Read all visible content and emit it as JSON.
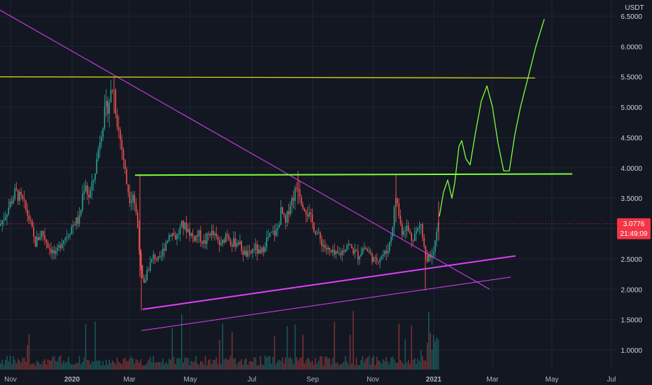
{
  "chart_data": {
    "type": "candlestick",
    "quote_currency": "USDT",
    "x_labels": [
      "Nov",
      "2020",
      "Mar",
      "May",
      "Jul",
      "Sep",
      "Nov",
      "2021",
      "Mar",
      "May",
      "Jul"
    ],
    "bold_x_labels": [
      "2020",
      "2021"
    ],
    "y_labels": [
      "6.5000",
      "6.0000",
      "5.5000",
      "5.0000",
      "4.5000",
      "4.0000",
      "3.5000",
      "3.0000",
      "2.5000",
      "2.0000",
      "1.5000",
      "1.0000"
    ],
    "ylim": [
      0.9,
      6.8
    ],
    "last_price": {
      "value": 3.0776,
      "label": "3.0776",
      "countdown": "21:49:09"
    },
    "grid": true,
    "colors": {
      "background": "#131722",
      "grid": "#1f2433",
      "up": "#26a69a",
      "down": "#ef5350",
      "magenta": "#e040fb",
      "green": "#4caf50",
      "yellow": "#e4e40f",
      "lime": "#7cff3a",
      "price_label": "#f23645"
    },
    "price_path": [
      [
        0,
        3.05
      ],
      [
        12,
        3.35
      ],
      [
        22,
        3.6
      ],
      [
        32,
        3.45
      ],
      [
        42,
        3.15
      ],
      [
        50,
        2.75
      ],
      [
        60,
        2.95
      ],
      [
        70,
        2.7
      ],
      [
        80,
        2.55
      ],
      [
        88,
        2.8
      ],
      [
        96,
        2.9
      ],
      [
        106,
        3.1
      ],
      [
        114,
        3.15
      ],
      [
        118,
        3.55
      ],
      [
        122,
        3.8
      ],
      [
        126,
        3.5
      ],
      [
        132,
        3.7
      ],
      [
        138,
        4.1
      ],
      [
        144,
        4.6
      ],
      [
        150,
        4.9
      ],
      [
        156,
        5.1
      ],
      [
        162,
        5.4
      ],
      [
        166,
        4.9
      ],
      [
        170,
        4.6
      ],
      [
        176,
        4.2
      ],
      [
        180,
        3.8
      ],
      [
        186,
        3.5
      ],
      [
        190,
        3.6
      ],
      [
        194,
        3.3
      ],
      [
        198,
        2.9
      ],
      [
        202,
        2.2
      ],
      [
        206,
        2.05
      ],
      [
        210,
        2.3
      ],
      [
        214,
        2.4
      ],
      [
        220,
        2.55
      ],
      [
        228,
        2.45
      ],
      [
        236,
        2.75
      ],
      [
        244,
        2.95
      ],
      [
        252,
        2.85
      ],
      [
        260,
        3.05
      ],
      [
        268,
        3.0
      ],
      [
        276,
        2.85
      ],
      [
        284,
        2.9
      ],
      [
        292,
        2.75
      ],
      [
        300,
        2.95
      ],
      [
        308,
        2.85
      ],
      [
        316,
        2.7
      ],
      [
        324,
        2.95
      ],
      [
        332,
        2.75
      ],
      [
        340,
        2.8
      ],
      [
        348,
        2.6
      ],
      [
        356,
        2.55
      ],
      [
        364,
        2.7
      ],
      [
        372,
        2.55
      ],
      [
        380,
        2.8
      ],
      [
        388,
        2.9
      ],
      [
        396,
        2.95
      ],
      [
        402,
        3.3
      ],
      [
        408,
        3.05
      ],
      [
        414,
        3.4
      ],
      [
        420,
        3.55
      ],
      [
        426,
        3.75
      ],
      [
        430,
        3.5
      ],
      [
        436,
        3.35
      ],
      [
        442,
        3.2
      ],
      [
        448,
        3.05
      ],
      [
        456,
        2.85
      ],
      [
        464,
        2.7
      ],
      [
        472,
        2.6
      ],
      [
        480,
        2.55
      ],
      [
        488,
        2.6
      ],
      [
        496,
        2.75
      ],
      [
        504,
        2.65
      ],
      [
        512,
        2.55
      ],
      [
        520,
        2.7
      ],
      [
        528,
        2.6
      ],
      [
        536,
        2.45
      ],
      [
        544,
        2.55
      ],
      [
        552,
        2.6
      ],
      [
        558,
        2.8
      ],
      [
        562,
        3.15
      ],
      [
        566,
        3.55
      ],
      [
        570,
        3.25
      ],
      [
        574,
        2.95
      ],
      [
        580,
        3.05
      ],
      [
        588,
        2.85
      ],
      [
        596,
        2.95
      ],
      [
        602,
        3.1
      ],
      [
        608,
        2.55
      ],
      [
        614,
        2.5
      ],
      [
        620,
        2.7
      ],
      [
        626,
        3.05
      ]
    ],
    "annotations": {
      "descending_line": {
        "color": "magenta",
        "from": [
          -0.1,
          6.6
        ],
        "to": [
          700,
          2.0
        ]
      },
      "resistance_yellow": {
        "color": "yellow",
        "from": [
          0,
          5.5
        ],
        "to": [
          765,
          5.48
        ]
      },
      "resistance_green": {
        "color": "lime",
        "from": [
          193,
          3.88
        ],
        "to": [
          818,
          3.9
        ]
      },
      "support_upper": {
        "color": "magenta",
        "from": [
          204,
          1.67
        ],
        "to": [
          737,
          2.55
        ]
      },
      "support_lower": {
        "color": "magenta",
        "from": [
          202,
          1.32
        ],
        "to": [
          730,
          2.2
        ]
      },
      "projection": {
        "color": "lime",
        "points": [
          [
            628,
            3.2
          ],
          [
            634,
            3.6
          ],
          [
            640,
            3.8
          ],
          [
            646,
            3.5
          ],
          [
            650,
            3.75
          ],
          [
            656,
            4.35
          ],
          [
            660,
            4.45
          ],
          [
            666,
            4.15
          ],
          [
            672,
            4.05
          ],
          [
            680,
            4.6
          ],
          [
            688,
            5.1
          ],
          [
            696,
            5.35
          ],
          [
            704,
            5.0
          ],
          [
            712,
            4.4
          ],
          [
            720,
            3.95
          ],
          [
            728,
            3.95
          ],
          [
            736,
            4.55
          ],
          [
            744,
            5.0
          ],
          [
            754,
            5.45
          ],
          [
            766,
            6.0
          ],
          [
            778,
            6.45
          ]
        ]
      }
    }
  }
}
